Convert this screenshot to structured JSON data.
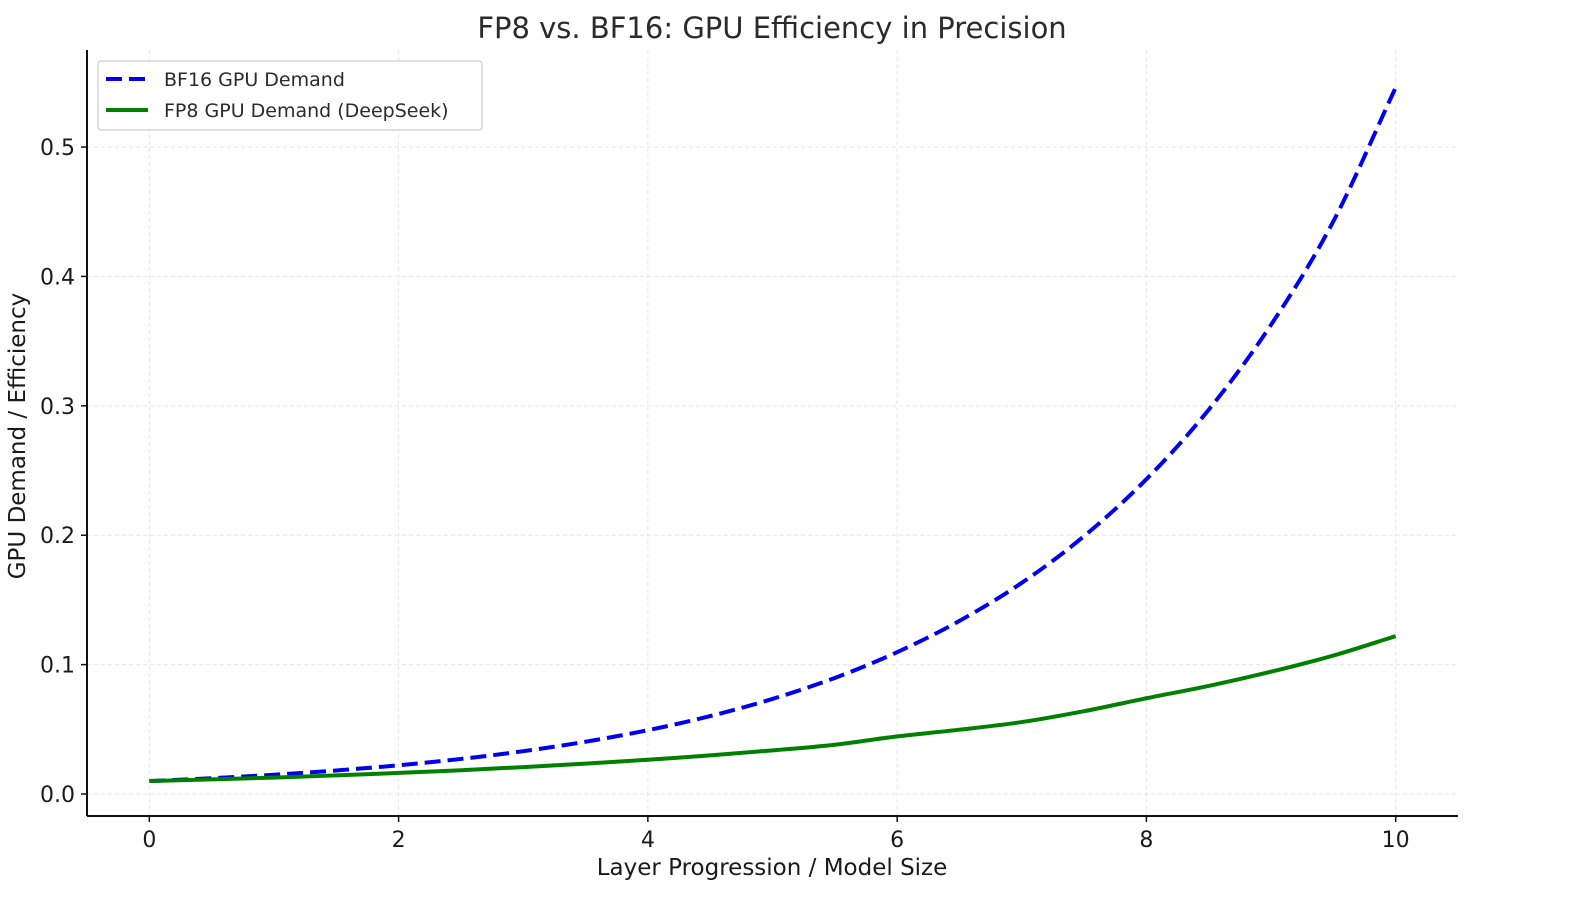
{
  "chart_data": {
    "type": "line",
    "title": "FP8 vs. BF16: GPU Efficiency in Precision",
    "xlabel": "Layer Progression / Model Size",
    "ylabel": "GPU Demand / Efficiency",
    "xlim": [
      -0.5,
      10.5
    ],
    "ylim": [
      -0.017,
      0.575
    ],
    "xticks": [
      0,
      2,
      4,
      6,
      8,
      10
    ],
    "xtick_labels": [
      "0",
      "2",
      "4",
      "6",
      "8",
      "10"
    ],
    "yticks": [
      0.0,
      0.1,
      0.2,
      0.3,
      0.4,
      0.5
    ],
    "ytick_labels": [
      "0.0",
      "0.1",
      "0.2",
      "0.3",
      "0.4",
      "0.5"
    ],
    "grid": true,
    "legend_position": "top-left",
    "x": [
      0,
      0.5,
      1,
      1.5,
      2,
      2.5,
      3,
      3.5,
      4,
      4.5,
      5,
      5.5,
      6,
      6.5,
      7,
      7.5,
      8,
      8.5,
      9,
      9.5,
      10
    ],
    "series": [
      {
        "name": "BF16 GPU Demand",
        "color": "#0000ee",
        "style": "dashed",
        "values": [
          0.01,
          0.0122,
          0.0149,
          0.0182,
          0.0222,
          0.0271,
          0.0331,
          0.0404,
          0.0493,
          0.0602,
          0.0735,
          0.0897,
          0.1096,
          0.1338,
          0.1632,
          0.1993,
          0.2433,
          0.297,
          0.3626,
          0.4426,
          0.546
        ]
      },
      {
        "name": "FP8 GPU Demand (DeepSeek)",
        "color": "#008000",
        "style": "solid",
        "values": [
          0.01,
          0.0113,
          0.0127,
          0.0144,
          0.0163,
          0.0184,
          0.0208,
          0.0235,
          0.0265,
          0.0299,
          0.0337,
          0.0381,
          0.0445,
          0.0497,
          0.0556,
          0.064,
          0.074,
          0.0835,
          0.0945,
          0.107,
          0.122
        ]
      }
    ]
  }
}
